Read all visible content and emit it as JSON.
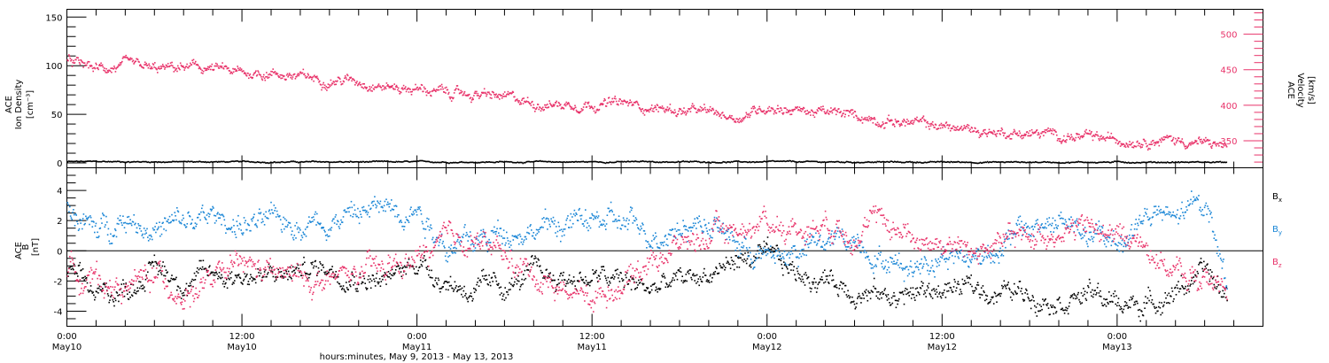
{
  "colors": {
    "black": "#000000",
    "pink": "#e8336a",
    "blue": "#1a86d6"
  },
  "time_axis": {
    "ticks": [
      {
        "hm": "0:00",
        "day": "May10"
      },
      {
        "hm": "12:00",
        "day": "May10"
      },
      {
        "hm": "0:00",
        "day": "May11"
      },
      {
        "hm": "12:00",
        "day": "May11"
      },
      {
        "hm": "0:00",
        "day": "May12"
      },
      {
        "hm": "12:00",
        "day": "May12"
      },
      {
        "hm": "0:00",
        "day": "May13"
      }
    ],
    "caption": "hours:minutes, May  9, 2013 - May 13, 2013"
  },
  "chart_data": [
    {
      "type": "scatter",
      "panel": "top",
      "x_unit": "hours after May10 0:00",
      "xlim": [
        0,
        82
      ],
      "ylabel_left": [
        "ACE",
        "Ion Density",
        "[cm⁻³]"
      ],
      "ylim_left": [
        -5,
        158
      ],
      "left_ticks": [
        0,
        50,
        100,
        150
      ],
      "ylabel_right": [
        "ACE",
        "Velocity",
        "[km/s]"
      ],
      "ylim_right": [
        312,
        535
      ],
      "right_ticks": [
        350,
        400,
        450,
        500
      ],
      "series": [
        {
          "axis": "right",
          "color": "pink",
          "x": [
            0,
            2,
            4,
            6,
            8,
            10,
            12,
            14,
            16,
            18,
            20,
            22,
            24,
            26,
            28,
            30,
            32,
            34,
            36,
            38,
            40,
            42,
            44,
            46,
            48,
            50,
            52,
            54,
            56,
            58,
            60,
            62,
            64,
            66,
            68,
            70,
            72,
            74,
            76,
            78,
            79.5
          ],
          "y": [
            462,
            452,
            456,
            450,
            454,
            452,
            445,
            447,
            440,
            437,
            436,
            427,
            424,
            418,
            416,
            411,
            404,
            402,
            404,
            403,
            398,
            393,
            390,
            384,
            400,
            394,
            390,
            386,
            380,
            376,
            371,
            366,
            363,
            361,
            359,
            354,
            352,
            354,
            352,
            347,
            343
          ],
          "spread": 7
        },
        {
          "axis": "left",
          "color": "black",
          "x": [
            0,
            20,
            40,
            60,
            79.5
          ],
          "y": [
            2,
            1.6,
            1.8,
            1.5,
            1.5
          ],
          "spread": 0.7
        }
      ]
    },
    {
      "type": "scatter",
      "panel": "bottom",
      "x_unit": "hours after May10 0:00",
      "xlim": [
        0,
        82
      ],
      "ylabel": [
        "ACE",
        "B",
        "[nT]"
      ],
      "ylim": [
        -5,
        5.5
      ],
      "y_ticks": [
        -4,
        -2,
        0,
        2,
        4
      ],
      "legend_position": "right",
      "series": [
        {
          "name": "Bx",
          "color": "black",
          "x": [
            0,
            2,
            4,
            6,
            8,
            10,
            12,
            14,
            16,
            18,
            20,
            22,
            24,
            26,
            28,
            30,
            32,
            34,
            36,
            38,
            40,
            42,
            44,
            46,
            48,
            50,
            52,
            54,
            56,
            58,
            60,
            62,
            64,
            66,
            68,
            70,
            72,
            74,
            76,
            78,
            79.5
          ],
          "y": [
            -1.5,
            -3,
            -2.5,
            -1,
            -2,
            -1.5,
            -1.5,
            -1.8,
            -1.2,
            -1,
            -1.5,
            -2,
            -0.5,
            -2,
            -2.6,
            -2.4,
            -1.5,
            -1.8,
            -1.7,
            -2,
            -2.5,
            -2,
            -1.5,
            -0.5,
            -0.5,
            -1.5,
            -1.8,
            -2.5,
            -3,
            -2.8,
            -2.5,
            -2.5,
            -2.6,
            -2.8,
            -3,
            -2.8,
            -3.5,
            -3.5,
            -2.5,
            -1.5,
            -3
          ],
          "spread": 0.7
        },
        {
          "name": "By",
          "color": "blue",
          "x": [
            0,
            2,
            4,
            6,
            8,
            10,
            12,
            14,
            16,
            18,
            20,
            22,
            24,
            26,
            28,
            30,
            32,
            34,
            36,
            38,
            40,
            42,
            44,
            46,
            48,
            50,
            52,
            54,
            56,
            58,
            60,
            62,
            64,
            66,
            68,
            70,
            72,
            74,
            76,
            78,
            79.5
          ],
          "y": [
            3,
            1.2,
            2.5,
            1.5,
            1.8,
            2.2,
            1.8,
            1.8,
            2,
            2.2,
            2.5,
            3,
            3,
            0.5,
            0.5,
            1.5,
            1.5,
            1.8,
            2,
            1.8,
            1.2,
            1.8,
            2,
            0.5,
            -0.5,
            0,
            0.5,
            1,
            -0.5,
            -1,
            0,
            -0.5,
            0.5,
            1.5,
            2,
            1,
            0.5,
            2.5,
            2,
            3.5,
            -2
          ],
          "spread": 0.8
        },
        {
          "name": "Bz",
          "color": "pink",
          "x": [
            0,
            2,
            4,
            6,
            8,
            10,
            12,
            14,
            16,
            18,
            20,
            22,
            24,
            26,
            28,
            30,
            32,
            34,
            36,
            38,
            40,
            42,
            44,
            46,
            48,
            50,
            52,
            54,
            56,
            58,
            60,
            62,
            64,
            66,
            68,
            70,
            72,
            74,
            76,
            78,
            79.5
          ],
          "y": [
            -1,
            -2,
            -2.5,
            -1.5,
            -2.8,
            -2,
            -1,
            -1.5,
            -1.8,
            -2,
            -1.5,
            -1.2,
            -0.5,
            0.5,
            1,
            -0.5,
            -1.5,
            -2.5,
            -3,
            -2,
            -0.5,
            0.5,
            1,
            1.5,
            2,
            1.5,
            2,
            1.5,
            2,
            1,
            0.5,
            0,
            0.5,
            1,
            1.5,
            1.5,
            1,
            0.5,
            -1.5,
            -2,
            -2.5
          ],
          "spread": 0.8
        }
      ]
    }
  ]
}
